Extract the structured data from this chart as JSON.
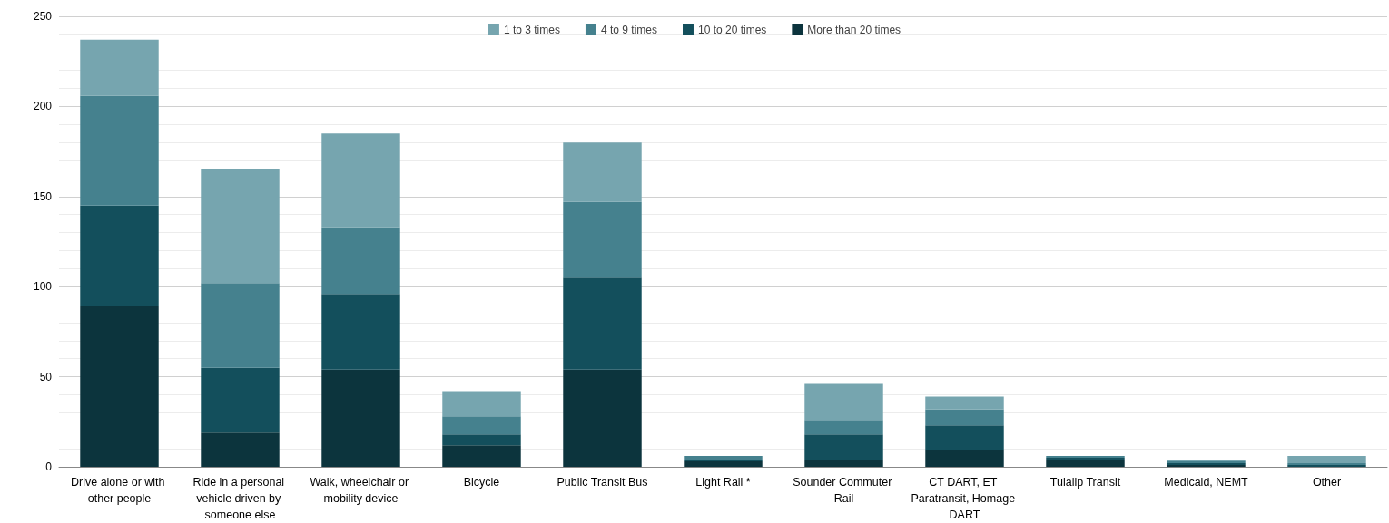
{
  "chart_data": {
    "type": "bar",
    "stacked": true,
    "categories": [
      "Drive alone or with other people",
      "Ride in a personal vehicle driven by someone else",
      "Walk, wheelchair or mobility device",
      "Bicycle",
      "Public Transit Bus",
      "Light Rail *",
      "Sounder Commuter Rail",
      "CT DART, ET Paratransit, Homage DART",
      "Tulalip Transit",
      "Medicaid, NEMT",
      "Other"
    ],
    "series": [
      {
        "name": "More than 20 times",
        "color": "#0c343d",
        "values": [
          89,
          19,
          54,
          12,
          54,
          3,
          4,
          9,
          4,
          1,
          0
        ]
      },
      {
        "name": "10 to 20 times",
        "color": "#134f5c",
        "values": [
          56,
          36,
          42,
          6,
          51,
          1,
          14,
          14,
          1,
          1,
          1
        ]
      },
      {
        "name": "4 to 9 times",
        "color": "#45818e",
        "values": [
          61,
          47,
          37,
          10,
          42,
          2,
          8,
          9,
          1,
          1,
          1
        ]
      },
      {
        "name": "1 to 3 times",
        "color": "#76a5af",
        "values": [
          31,
          63,
          52,
          14,
          33,
          0,
          20,
          7,
          0,
          1,
          4
        ]
      }
    ],
    "ylim": [
      0,
      250
    ],
    "yticks": [
      0,
      50,
      100,
      150,
      200,
      250
    ],
    "grid": "y",
    "legend": "top"
  }
}
